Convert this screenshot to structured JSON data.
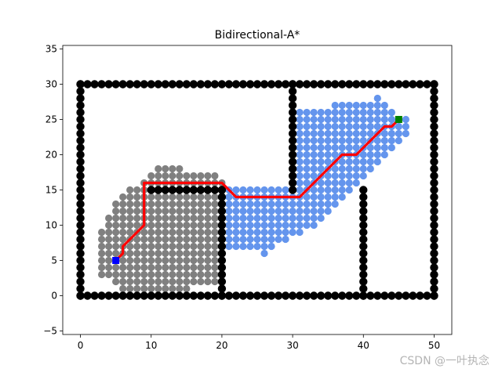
{
  "chart_data": {
    "type": "scatter",
    "title": "Bidirectional-A*",
    "xlabel": "",
    "ylabel": "",
    "xlim": [
      -2.5,
      52.5
    ],
    "ylim": [
      -5.5,
      35.5
    ],
    "x_ticks": [
      0,
      10,
      20,
      30,
      40,
      50
    ],
    "y_ticks": [
      -5,
      0,
      5,
      10,
      15,
      20,
      25,
      30,
      35
    ],
    "grid": false,
    "legend": "none",
    "colors": {
      "obstacle": "#000000",
      "forward_search": "#808080",
      "backward_search": "#6495ed",
      "path": "#ff0000",
      "start": "#0000ff",
      "goal": "#008000"
    },
    "start": [
      5,
      5
    ],
    "goal": [
      45,
      25
    ],
    "obstacles": {
      "segments": [
        [
          [
            0,
            0
          ],
          [
            50,
            0
          ]
        ],
        [
          [
            0,
            30
          ],
          [
            50,
            30
          ]
        ],
        [
          [
            0,
            0
          ],
          [
            0,
            30
          ]
        ],
        [
          [
            50,
            0
          ],
          [
            50,
            30
          ]
        ],
        [
          [
            10,
            15
          ],
          [
            20,
            15
          ]
        ],
        [
          [
            20,
            0
          ],
          [
            20,
            15
          ]
        ],
        [
          [
            30,
            15
          ],
          [
            30,
            30
          ]
        ],
        [
          [
            40,
            0
          ],
          [
            40,
            15
          ]
        ]
      ]
    },
    "forward_search": {
      "rows": [
        [
          1,
          6,
          15
        ],
        [
          2,
          5,
          19
        ],
        [
          3,
          3,
          19
        ],
        [
          4,
          3,
          19
        ],
        [
          5,
          3,
          19
        ],
        [
          6,
          3,
          19
        ],
        [
          7,
          3,
          19
        ],
        [
          8,
          3,
          19
        ],
        [
          9,
          3,
          19
        ],
        [
          10,
          4,
          19
        ],
        [
          11,
          4,
          19
        ],
        [
          12,
          5,
          19
        ],
        [
          13,
          5,
          19
        ],
        [
          14,
          6,
          19
        ],
        [
          15,
          7,
          9
        ],
        [
          16,
          9,
          20
        ],
        [
          17,
          10,
          19
        ],
        [
          18,
          11,
          14
        ]
      ]
    },
    "backward_search": {
      "rows": [
        [
          6,
          26,
          26
        ],
        [
          7,
          21,
          27
        ],
        [
          8,
          21,
          29
        ],
        [
          9,
          21,
          31
        ],
        [
          10,
          21,
          33
        ],
        [
          11,
          21,
          34
        ],
        [
          12,
          21,
          35
        ],
        [
          13,
          21,
          36
        ],
        [
          14,
          21,
          37
        ],
        [
          15,
          21,
          38
        ],
        [
          16,
          31,
          39
        ],
        [
          17,
          31,
          40
        ],
        [
          18,
          31,
          41
        ],
        [
          19,
          31,
          42
        ],
        [
          20,
          31,
          43
        ],
        [
          21,
          31,
          44
        ],
        [
          22,
          31,
          45
        ],
        [
          23,
          31,
          46
        ],
        [
          24,
          31,
          46
        ],
        [
          25,
          31,
          46
        ],
        [
          26,
          31,
          44
        ],
        [
          27,
          36,
          43
        ],
        [
          28,
          42,
          42
        ]
      ]
    },
    "path": [
      [
        5,
        5
      ],
      [
        6,
        6
      ],
      [
        6,
        7
      ],
      [
        7,
        8
      ],
      [
        8,
        9
      ],
      [
        9,
        10
      ],
      [
        9,
        16
      ],
      [
        10,
        16
      ],
      [
        20,
        16
      ],
      [
        21,
        15
      ],
      [
        22,
        14
      ],
      [
        23,
        14
      ],
      [
        31,
        14
      ],
      [
        32,
        15
      ],
      [
        33,
        16
      ],
      [
        34,
        17
      ],
      [
        35,
        18
      ],
      [
        36,
        19
      ],
      [
        37,
        20
      ],
      [
        38,
        20
      ],
      [
        39,
        20
      ],
      [
        40,
        21
      ],
      [
        41,
        22
      ],
      [
        42,
        23
      ],
      [
        43,
        24
      ],
      [
        44,
        24
      ],
      [
        45,
        25
      ]
    ]
  },
  "watermark": "CSDN @一叶执念"
}
